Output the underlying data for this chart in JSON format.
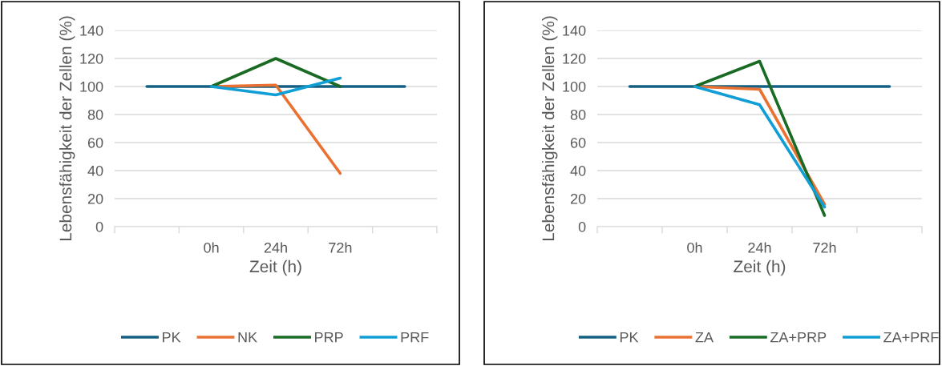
{
  "chart_data": [
    {
      "type": "line",
      "xlabel": "Zeit (h)",
      "ylabel": "Lebensfähigkeit der Zellen (%)",
      "categories": [
        null,
        "0h",
        "24h",
        "72h",
        null
      ],
      "ylim": [
        0,
        140
      ],
      "yticks": [
        0,
        20,
        40,
        60,
        80,
        100,
        120,
        140
      ],
      "grid": "y",
      "legend": "bottom",
      "marker": "none",
      "series": [
        {
          "name": "PK",
          "color": "#156082",
          "values": [
            100,
            100,
            100,
            100,
            100
          ]
        },
        {
          "name": "NK",
          "color": "#e97132",
          "values": [
            null,
            100,
            101,
            38,
            null
          ]
        },
        {
          "name": "PRP",
          "color": "#196b24",
          "values": [
            null,
            100,
            120,
            100,
            null
          ]
        },
        {
          "name": "PRF",
          "color": "#0f9ed5",
          "values": [
            null,
            100,
            94,
            106,
            null
          ]
        }
      ]
    },
    {
      "type": "line",
      "xlabel": "Zeit (h)",
      "ylabel": "Lebensfähigkeit der Zellen (%)",
      "categories": [
        null,
        "0h",
        "24h",
        "72h",
        null
      ],
      "ylim": [
        0,
        140
      ],
      "yticks": [
        0,
        20,
        40,
        60,
        80,
        100,
        120,
        140
      ],
      "grid": "y",
      "legend": "bottom",
      "marker": "none",
      "series": [
        {
          "name": "PK",
          "color": "#156082",
          "values": [
            100,
            100,
            100,
            100,
            100
          ]
        },
        {
          "name": "ZA",
          "color": "#e97132",
          "values": [
            null,
            100,
            98,
            16,
            null
          ]
        },
        {
          "name": "ZA+PRP",
          "color": "#196b24",
          "values": [
            null,
            100,
            118,
            8,
            null
          ]
        },
        {
          "name": "ZA+PRF",
          "color": "#0f9ed5",
          "values": [
            null,
            100,
            87,
            14,
            null
          ]
        }
      ]
    }
  ]
}
